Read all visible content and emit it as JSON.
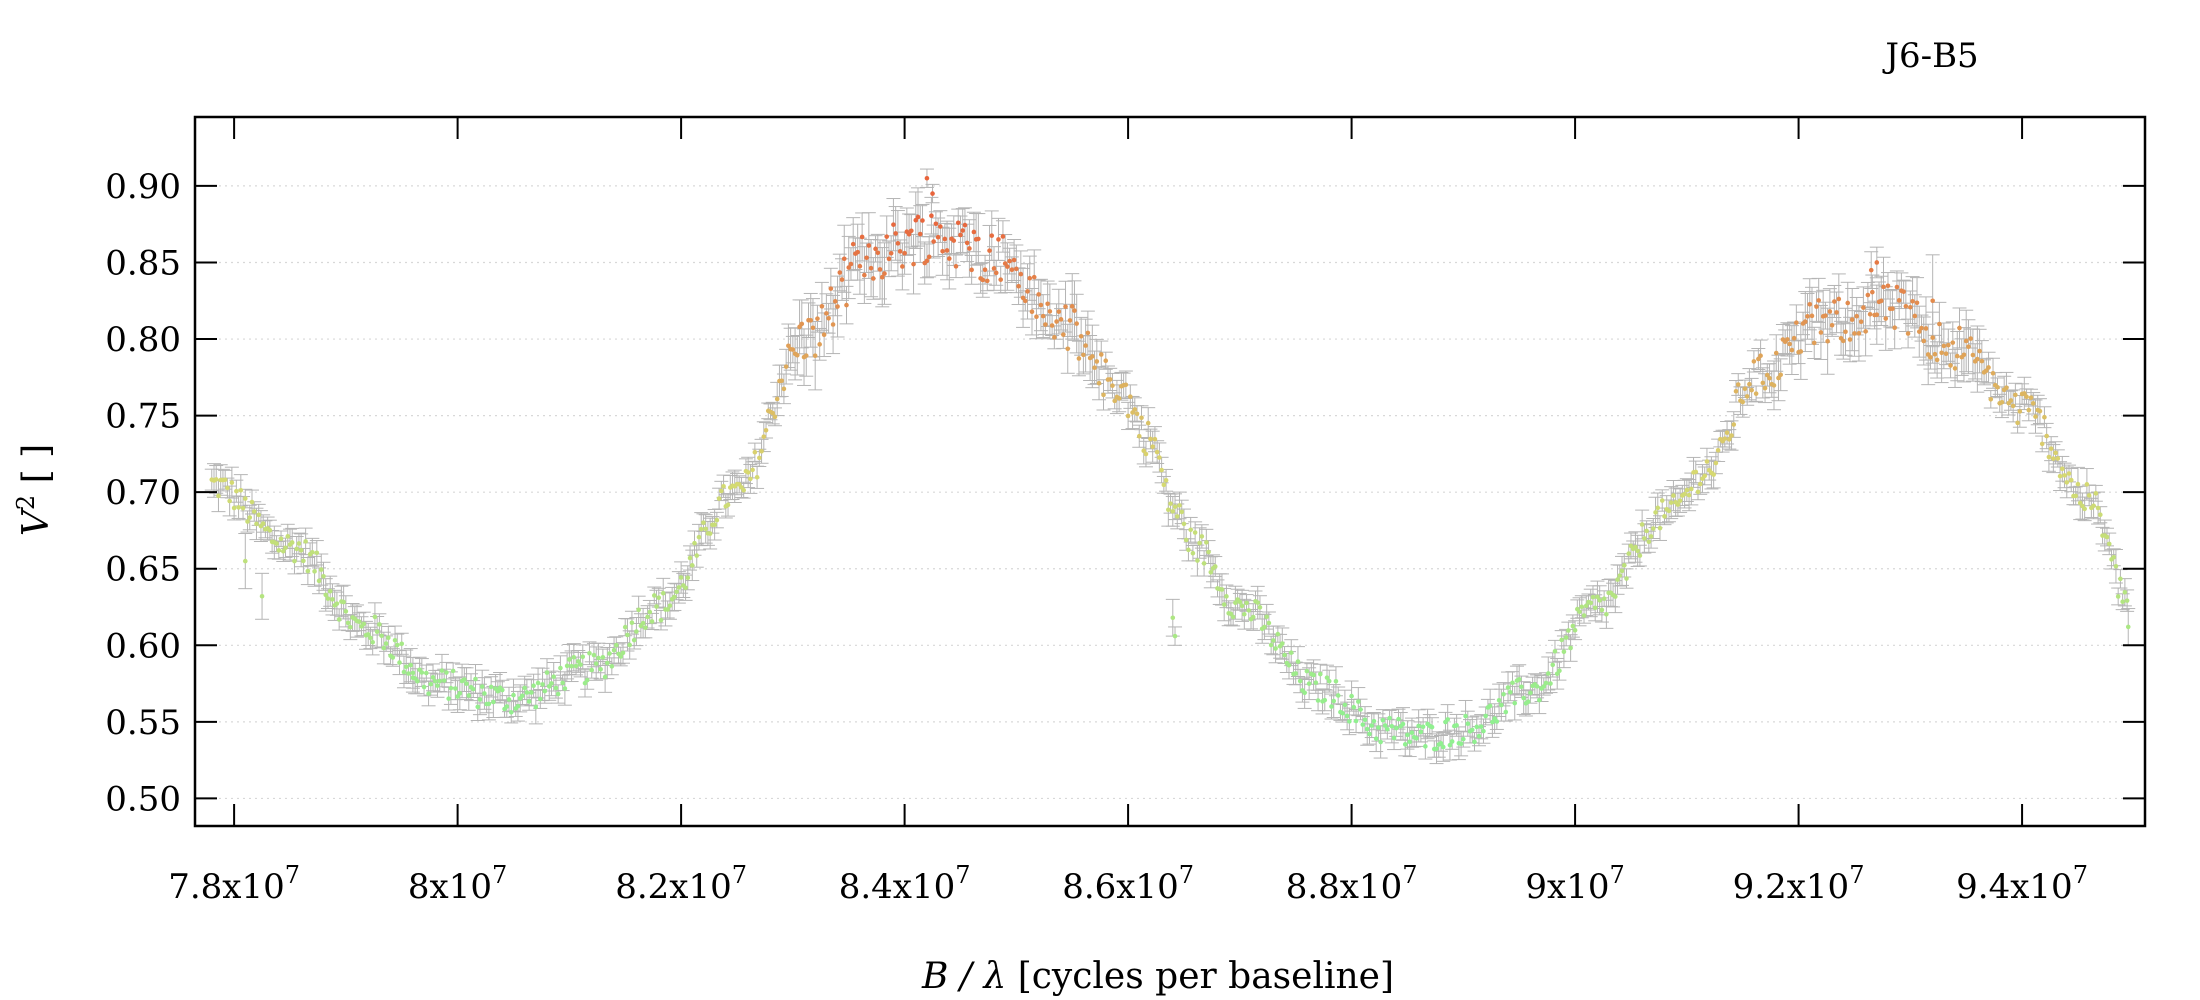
{
  "chart_data": {
    "type": "scatter",
    "title": "J6-B5",
    "xlabel": {
      "var": "B / λ",
      "rest": " [cycles per baseline]"
    },
    "ylabel": {
      "var": "V",
      "sup": "2",
      "rest": " [ ]"
    },
    "xlim": [
      77650000,
      95100000
    ],
    "ylim": [
      0.482,
      0.945
    ],
    "x_ticks": [
      {
        "value": 78000000,
        "mantissa": "7.8x10",
        "exp": "7"
      },
      {
        "value": 80000000,
        "mantissa": "8x10",
        "exp": "7"
      },
      {
        "value": 82000000,
        "mantissa": "8.2x10",
        "exp": "7"
      },
      {
        "value": 84000000,
        "mantissa": "8.4x10",
        "exp": "7"
      },
      {
        "value": 86000000,
        "mantissa": "8.6x10",
        "exp": "7"
      },
      {
        "value": 88000000,
        "mantissa": "8.8x10",
        "exp": "7"
      },
      {
        "value": 90000000,
        "mantissa": "9x10",
        "exp": "7"
      },
      {
        "value": 92000000,
        "mantissa": "9.2x10",
        "exp": "7"
      },
      {
        "value": 94000000,
        "mantissa": "9.4x10",
        "exp": "7"
      }
    ],
    "y_ticks": [
      {
        "value": 0.5,
        "label": "0.50"
      },
      {
        "value": 0.55,
        "label": "0.55"
      },
      {
        "value": 0.6,
        "label": "0.60"
      },
      {
        "value": 0.65,
        "label": "0.65"
      },
      {
        "value": 0.7,
        "label": "0.70"
      },
      {
        "value": 0.75,
        "label": "0.75"
      },
      {
        "value": 0.8,
        "label": "0.80"
      },
      {
        "value": 0.85,
        "label": "0.85"
      },
      {
        "value": 0.9,
        "label": "0.90"
      }
    ],
    "grid": "horizontal-dotted",
    "errorbar_color": "#b4b4b4",
    "color_scale": {
      "low_value": 0.55,
      "high_value": 0.88,
      "low_color": "#90f090",
      "mid_color": "#d8d870",
      "high_color": "#e8643c"
    },
    "trend_x": [
      77800000,
      78500000,
      79200000,
      79800000,
      80500000,
      81200000,
      81800000,
      82500000,
      83100000,
      83700000,
      84200000,
      84800000,
      85400000,
      85900000,
      86200000,
      86400000,
      86600000,
      87000000,
      87700000,
      88300000,
      88600000,
      89000000,
      89600000,
      90200000,
      90800000,
      91200000,
      91600000,
      92200000,
      92800000,
      93400000,
      94000000,
      94600000,
      94950000
    ],
    "trend_y": [
      0.705,
      0.665,
      0.61,
      0.575,
      0.565,
      0.585,
      0.625,
      0.7,
      0.8,
      0.855,
      0.868,
      0.855,
      0.81,
      0.77,
      0.735,
      0.69,
      0.665,
      0.625,
      0.572,
      0.545,
      0.54,
      0.545,
      0.57,
      0.625,
      0.685,
      0.715,
      0.775,
      0.81,
      0.82,
      0.795,
      0.755,
      0.695,
      0.63
    ],
    "x_step": 20000,
    "outliers": [
      {
        "x": 78100000,
        "y": 0.655,
        "err": 0.018
      },
      {
        "x": 78250000,
        "y": 0.632,
        "err": 0.015
      },
      {
        "x": 79600000,
        "y": 0.582,
        "err": 0.01
      },
      {
        "x": 84200000,
        "y": 0.905,
        "err": 0.006
      },
      {
        "x": 84250000,
        "y": 0.895,
        "err": 0.006
      },
      {
        "x": 86400000,
        "y": 0.618,
        "err": 0.012
      },
      {
        "x": 86420000,
        "y": 0.606,
        "err": 0.006
      },
      {
        "x": 92650000,
        "y": 0.845,
        "err": 0.012
      },
      {
        "x": 92700000,
        "y": 0.85,
        "err": 0.01
      },
      {
        "x": 93200000,
        "y": 0.825,
        "err": 0.03
      },
      {
        "x": 94950000,
        "y": 0.612,
        "err": 0.012
      }
    ]
  }
}
